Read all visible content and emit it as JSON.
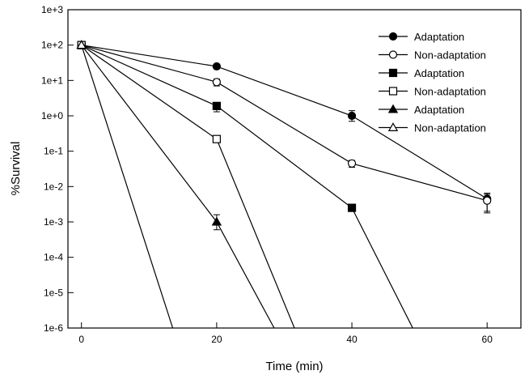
{
  "chart_data": {
    "type": "line",
    "y_scale": "log",
    "xlabel": "Time (min)",
    "ylabel": "%Survival",
    "xlim": [
      -2,
      65
    ],
    "xticks": [
      0,
      20,
      40,
      60
    ],
    "xtick_labels": [
      "0",
      "20",
      "40",
      "60"
    ],
    "ylim": [
      1e-06,
      1000
    ],
    "yticks": [
      1e-06,
      1e-05,
      0.0001,
      0.001,
      0.01,
      0.1,
      1,
      10,
      100,
      1000
    ],
    "ytick_labels": [
      "1e-6",
      "1e-5",
      "1e-4",
      "1e-3",
      "1e-2",
      "1e-1",
      "1e+0",
      "1e+1",
      "1e+2",
      "1e+3"
    ],
    "grid": false,
    "legend_position": "top-right",
    "series": [
      {
        "name": "Adaptation",
        "marker": "filled-circle",
        "x": [
          0,
          20,
          40,
          60
        ],
        "y": [
          100,
          25,
          1.0,
          0.0045
        ],
        "err_low": [
          null,
          null,
          0.7,
          0.002
        ],
        "err_high": [
          null,
          null,
          1.4,
          0.006
        ]
      },
      {
        "name": "Non-adaptation",
        "marker": "open-circle",
        "x": [
          0,
          20,
          40,
          60
        ],
        "y": [
          100,
          9,
          0.045,
          0.004
        ],
        "err_low": [
          null,
          7,
          0.035,
          0.0018
        ],
        "err_high": [
          null,
          11,
          0.055,
          0.0065
        ]
      },
      {
        "name": "Adaptation",
        "marker": "filled-square",
        "x": [
          0,
          20,
          40,
          49
        ],
        "y": [
          100,
          1.9,
          0.0025,
          1e-06
        ],
        "err_low": [
          null,
          1.3,
          null,
          null
        ],
        "err_high": [
          null,
          2.3,
          null,
          null
        ]
      },
      {
        "name": "Non-adaptation",
        "marker": "open-square",
        "x": [
          0,
          20,
          31.5
        ],
        "y": [
          100,
          0.22,
          1e-06
        ],
        "err_low": [
          null,
          null,
          null
        ],
        "err_high": [
          null,
          null,
          null
        ]
      },
      {
        "name": "Adaptation",
        "marker": "filled-triangle",
        "x": [
          0,
          20,
          28.5
        ],
        "y": [
          100,
          0.001,
          1e-06
        ],
        "err_low": [
          null,
          0.0006,
          null
        ],
        "err_high": [
          null,
          0.0016,
          null
        ]
      },
      {
        "name": "Non-adaptation",
        "marker": "open-triangle",
        "x": [
          0,
          13.5
        ],
        "y": [
          100,
          1e-06
        ],
        "err_low": [
          null,
          null
        ],
        "err_high": [
          null,
          null
        ]
      }
    ]
  }
}
